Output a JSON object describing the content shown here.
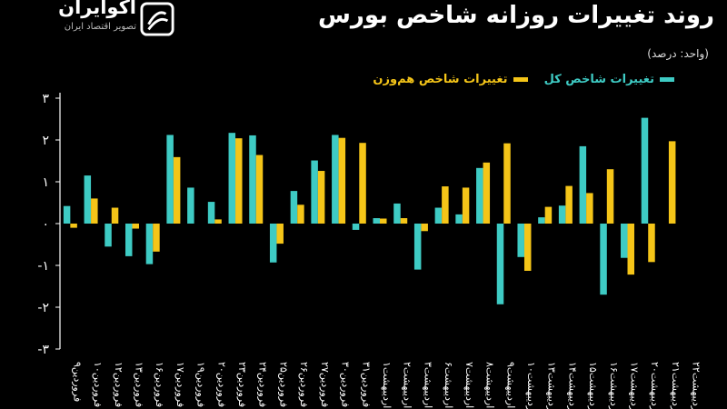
{
  "brand": {
    "name": "اکوایران",
    "tagline": "تصویر اقتصاد ایران"
  },
  "header": {
    "title": "روند تغییرات روزانه شاخص بورس",
    "unit": "(واحد: درصد)"
  },
  "colors": {
    "background": "#000000",
    "total": "#3ECBC4",
    "equal": "#F5C518",
    "axis": "#ffffff"
  },
  "chart_data": {
    "type": "bar",
    "categories": [
      "فروردین۹",
      "فروردین۱۰",
      "فروردین۱۲",
      "فروردین۱۳",
      "فروردین۱۶",
      "فروردین۱۷",
      "فروردین۱۹",
      "فروردین۲۰",
      "فروردین۲۳",
      "فروردین۲۴",
      "فروردین۲۵",
      "فروردین۲۶",
      "فروردین۲۷",
      "فروردین۳۰",
      "فروردین۳۱",
      "اردیبهشت۱",
      "اردیبهشت۲",
      "اردیبهشت۳",
      "اردیبهشت۶",
      "اردیبهشت۷",
      "اردیبهشت۸",
      "اردیبهشت۹",
      "اردیبهشت۱۰",
      "اردیبهشت۱۳",
      "اردیبهشت۱۴",
      "اردیبهشت۱۵",
      "اردیبهشت۱۶",
      "اردیبهشت۱۷",
      "اردیبهشت۲۰",
      "اردیبهشت۲۱",
      "اردیبهشت۲۲"
    ],
    "series": [
      {
        "name": "تغییرات شاخص کل",
        "values": [
          0.42,
          1.15,
          -0.55,
          -0.78,
          -0.97,
          2.12,
          0.86,
          0.52,
          2.17,
          2.11,
          -0.93,
          0.78,
          1.51,
          2.12,
          -0.15,
          0.13,
          0.48,
          -1.1,
          0.38,
          0.22,
          1.33,
          -1.93,
          -0.8,
          0.15,
          0.43,
          1.85,
          -1.7,
          -0.82,
          2.53,
          0.0,
          0.0
        ]
      },
      {
        "name": "تغییرات شاخص هم‌وزن",
        "values": [
          -0.1,
          0.6,
          0.38,
          -0.12,
          -0.67,
          1.59,
          0.0,
          0.1,
          2.04,
          1.64,
          -0.48,
          0.45,
          1.26,
          2.05,
          1.93,
          0.12,
          0.13,
          -0.18,
          0.89,
          0.86,
          1.46,
          1.92,
          -1.13,
          0.4,
          0.9,
          0.73,
          1.3,
          -1.22,
          -0.92,
          1.97,
          0.0
        ]
      }
    ],
    "ylim": [
      -3,
      3
    ],
    "yticks": [
      3,
      2,
      1,
      0,
      -1,
      -2,
      -3
    ],
    "ytick_labels": [
      "۳",
      "۲",
      "۱",
      "۰",
      "-۱",
      "-۲",
      "-۳"
    ],
    "legend_position": "top-right",
    "grid": false
  }
}
